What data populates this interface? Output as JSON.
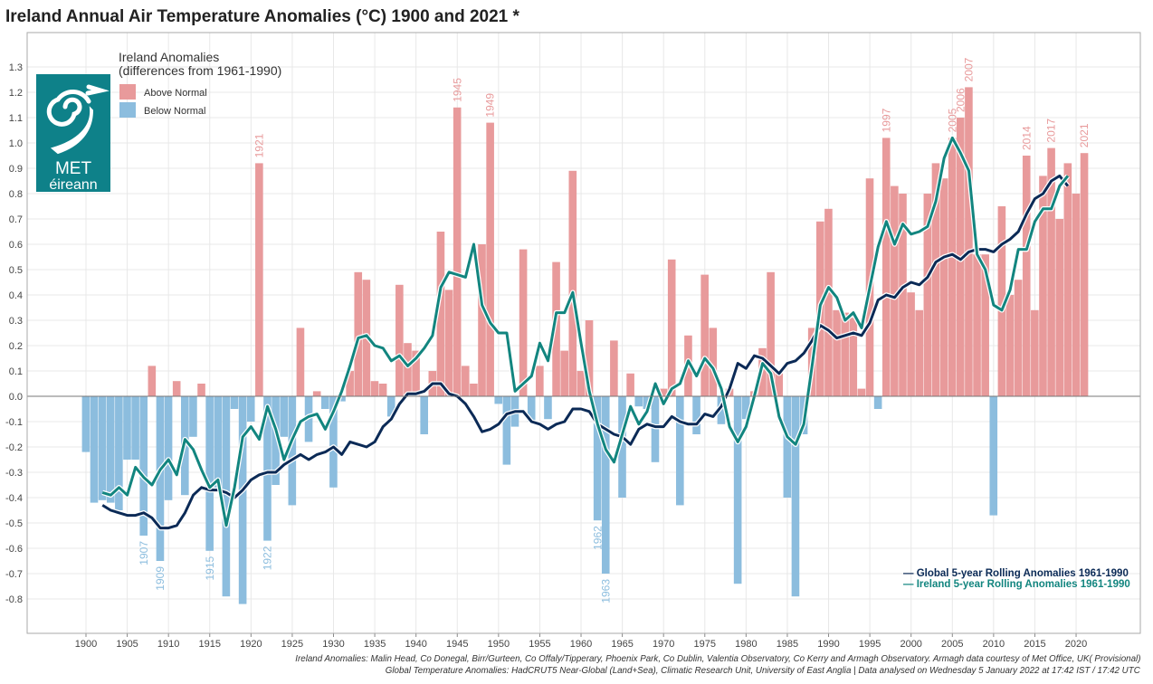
{
  "title": "Ireland Annual Air Temperature Anomalies (°C) 1900 and 2021 *",
  "legend": {
    "title_line1": "Ireland Anomalies",
    "title_line2": "(differences from 1961-1990)",
    "above": "Above Normal",
    "below": "Below Normal",
    "global_line": "— Global 5-year Rolling Anomalies 1961-1990",
    "ireland_line": "— Ireland 5-year Rolling Anomalies 1961-1990"
  },
  "logo": {
    "line1": "MET",
    "line2": "éireann"
  },
  "footer": {
    "line1": "Ireland Anomalies: Malin Head, Co Donegal, Birr/Gurteen, Co Offaly/Tipperary, Phoenix Park, Co Dublin, Valentia Observatory, Co Kerry and Armagh Observatory. Armagh data courtesy of Met Office, UK( Provisional)",
    "line2": "Global Temperature Anomalies: HadCRUT5 Near-Global (Land+Sea), Climatic Research Unit, University of East Anglia | Data analysed on Wednesday 5 January 2022 at 17:42 IST / 17:42 UTC"
  },
  "colors": {
    "above": "#E89A9B",
    "below": "#8CBDDE",
    "global": "#0B2A56",
    "ireland": "#12857F",
    "logo": "#0E8189"
  },
  "chart_data": {
    "type": "bar",
    "title": "Ireland Annual Air Temperature Anomalies (°C) 1900 and 2021 *",
    "xlabel": "",
    "ylabel": "",
    "xlim": [
      1897,
      2023
    ],
    "ylim": [
      -0.95,
      1.45
    ],
    "grid": true,
    "legend_position": "top-left / bottom-right",
    "x_ticks": [
      1900,
      1905,
      1910,
      1915,
      1920,
      1925,
      1930,
      1935,
      1940,
      1945,
      1950,
      1955,
      1960,
      1965,
      1970,
      1975,
      1980,
      1985,
      1990,
      1995,
      2000,
      2005,
      2010,
      2015,
      2020
    ],
    "y_ticks": [
      -0.8,
      -0.7,
      -0.6,
      -0.5,
      -0.4,
      -0.3,
      -0.2,
      -0.1,
      0.0,
      0.1,
      0.2,
      0.3,
      0.4,
      0.5,
      0.6,
      0.7,
      0.8,
      0.9,
      1.0,
      1.1,
      1.2,
      1.3
    ],
    "y_tick_labels": [
      "-0.8",
      "-0.7",
      "-0.6",
      "-0.5",
      "-0.4",
      "-0.3",
      "-0.2",
      "-0.1",
      "0.0",
      "0.1",
      "0.2",
      "0.3",
      "0.4",
      "0.5",
      "0.6",
      "0.7",
      "0.8",
      "0.9",
      "1.0",
      "1.1",
      "1.2",
      "1.3"
    ],
    "bars": {
      "start_year": 1900,
      "values": [
        -0.22,
        -0.42,
        -0.41,
        -0.42,
        -0.45,
        -0.25,
        -0.25,
        -0.55,
        0.12,
        -0.65,
        -0.41,
        0.06,
        -0.39,
        -0.16,
        0.05,
        -0.61,
        -0.36,
        -0.79,
        -0.05,
        -0.82,
        -0.1,
        0.92,
        -0.57,
        -0.35,
        -0.16,
        -0.43,
        0.27,
        -0.18,
        0.02,
        -0.05,
        -0.36,
        -0.02,
        0.1,
        0.49,
        0.46,
        0.06,
        0.05,
        -0.08,
        0.44,
        0.21,
        0.18,
        -0.15,
        0.1,
        0.65,
        0.42,
        1.14,
        0.12,
        0.05,
        0.6,
        1.08,
        -0.03,
        -0.27,
        -0.12,
        0.58,
        -0.1,
        0.12,
        -0.09,
        0.53,
        0.18,
        0.89,
        0.1,
        0.3,
        -0.49,
        -0.7,
        0.22,
        -0.4,
        0.09,
        -0.04,
        -0.05,
        -0.26,
        0.03,
        0.54,
        -0.43,
        0.24,
        -0.15,
        0.48,
        0.27,
        -0.11,
        0.03,
        -0.74,
        -0.09,
        0.02,
        0.19,
        0.49,
        0.09,
        -0.4,
        -0.79,
        -0.15,
        0.27,
        0.69,
        0.74,
        0.34,
        0.33,
        0.31,
        0.03,
        0.86,
        -0.05,
        1.02,
        0.83,
        0.8,
        0.41,
        0.34,
        0.8,
        0.92,
        0.86,
        1.02,
        1.1,
        1.22,
        0.56,
        0.56,
        -0.47,
        0.75,
        0.4,
        0.46,
        0.95,
        0.34,
        0.87,
        0.98,
        0.7,
        0.92,
        0.8,
        0.96
      ]
    },
    "annotated_years": [
      1907,
      1909,
      1915,
      1921,
      1922,
      1945,
      1949,
      1962,
      1963,
      1997,
      2005,
      2006,
      2007,
      2014,
      2017,
      2021
    ],
    "series": [
      {
        "name": "Global 5-year Rolling Anomalies 1961-1990",
        "start_year": 1902,
        "values": [
          -0.43,
          -0.45,
          -0.46,
          -0.47,
          -0.47,
          -0.46,
          -0.48,
          -0.52,
          -0.52,
          -0.51,
          -0.46,
          -0.39,
          -0.36,
          -0.37,
          -0.37,
          -0.38,
          -0.4,
          -0.37,
          -0.33,
          -0.31,
          -0.3,
          -0.3,
          -0.27,
          -0.25,
          -0.23,
          -0.25,
          -0.23,
          -0.22,
          -0.2,
          -0.23,
          -0.18,
          -0.19,
          -0.2,
          -0.18,
          -0.12,
          -0.09,
          -0.03,
          0.01,
          0.01,
          0.02,
          0.05,
          0.05,
          0.01,
          0.0,
          -0.03,
          -0.08,
          -0.14,
          -0.13,
          -0.11,
          -0.07,
          -0.06,
          -0.06,
          -0.1,
          -0.11,
          -0.13,
          -0.11,
          -0.1,
          -0.05,
          -0.05,
          -0.06,
          -0.11,
          -0.13,
          -0.15,
          -0.16,
          -0.19,
          -0.13,
          -0.11,
          -0.12,
          -0.12,
          -0.08,
          -0.1,
          -0.11,
          -0.11,
          -0.07,
          -0.08,
          -0.04,
          0.03,
          0.13,
          0.11,
          0.16,
          0.15,
          0.12,
          0.09,
          0.13,
          0.14,
          0.17,
          0.22,
          0.28,
          0.26,
          0.23,
          0.24,
          0.25,
          0.24,
          0.29,
          0.38,
          0.4,
          0.39,
          0.43,
          0.45,
          0.44,
          0.47,
          0.53,
          0.55,
          0.56,
          0.54,
          0.57,
          0.58,
          0.58,
          0.57,
          0.6,
          0.62,
          0.65,
          0.72,
          0.78,
          0.8,
          0.85,
          0.87,
          0.83
        ]
      },
      {
        "name": "Ireland 5-year Rolling Anomalies 1961-1990",
        "start_year": 1902,
        "values": [
          -0.38,
          -0.39,
          -0.36,
          -0.39,
          -0.28,
          -0.32,
          -0.35,
          -0.29,
          -0.25,
          -0.31,
          -0.17,
          -0.21,
          -0.29,
          -0.36,
          -0.33,
          -0.51,
          -0.36,
          -0.16,
          -0.12,
          -0.17,
          -0.04,
          -0.13,
          -0.25,
          -0.17,
          -0.1,
          -0.08,
          -0.07,
          -0.13,
          -0.06,
          0.02,
          0.12,
          0.23,
          0.24,
          0.2,
          0.19,
          0.14,
          0.16,
          0.12,
          0.15,
          0.19,
          0.24,
          0.43,
          0.49,
          0.48,
          0.47,
          0.6,
          0.36,
          0.29,
          0.25,
          0.25,
          0.02,
          0.05,
          0.08,
          0.21,
          0.14,
          0.33,
          0.33,
          0.41,
          0.21,
          0.02,
          -0.11,
          -0.21,
          -0.26,
          -0.15,
          -0.04,
          -0.11,
          -0.06,
          0.05,
          -0.03,
          0.03,
          0.05,
          0.14,
          0.08,
          0.15,
          0.11,
          0.03,
          -0.12,
          -0.18,
          -0.12,
          0.0,
          0.13,
          0.09,
          -0.08,
          -0.16,
          -0.19,
          -0.11,
          0.12,
          0.36,
          0.43,
          0.39,
          0.3,
          0.33,
          0.27,
          0.43,
          0.59,
          0.69,
          0.6,
          0.68,
          0.64,
          0.65,
          0.67,
          0.77,
          0.94,
          1.02,
          0.96,
          0.89,
          0.56,
          0.5,
          0.36,
          0.34,
          0.42,
          0.58,
          0.58,
          0.69,
          0.74,
          0.74,
          0.83,
          0.87
        ]
      }
    ]
  }
}
